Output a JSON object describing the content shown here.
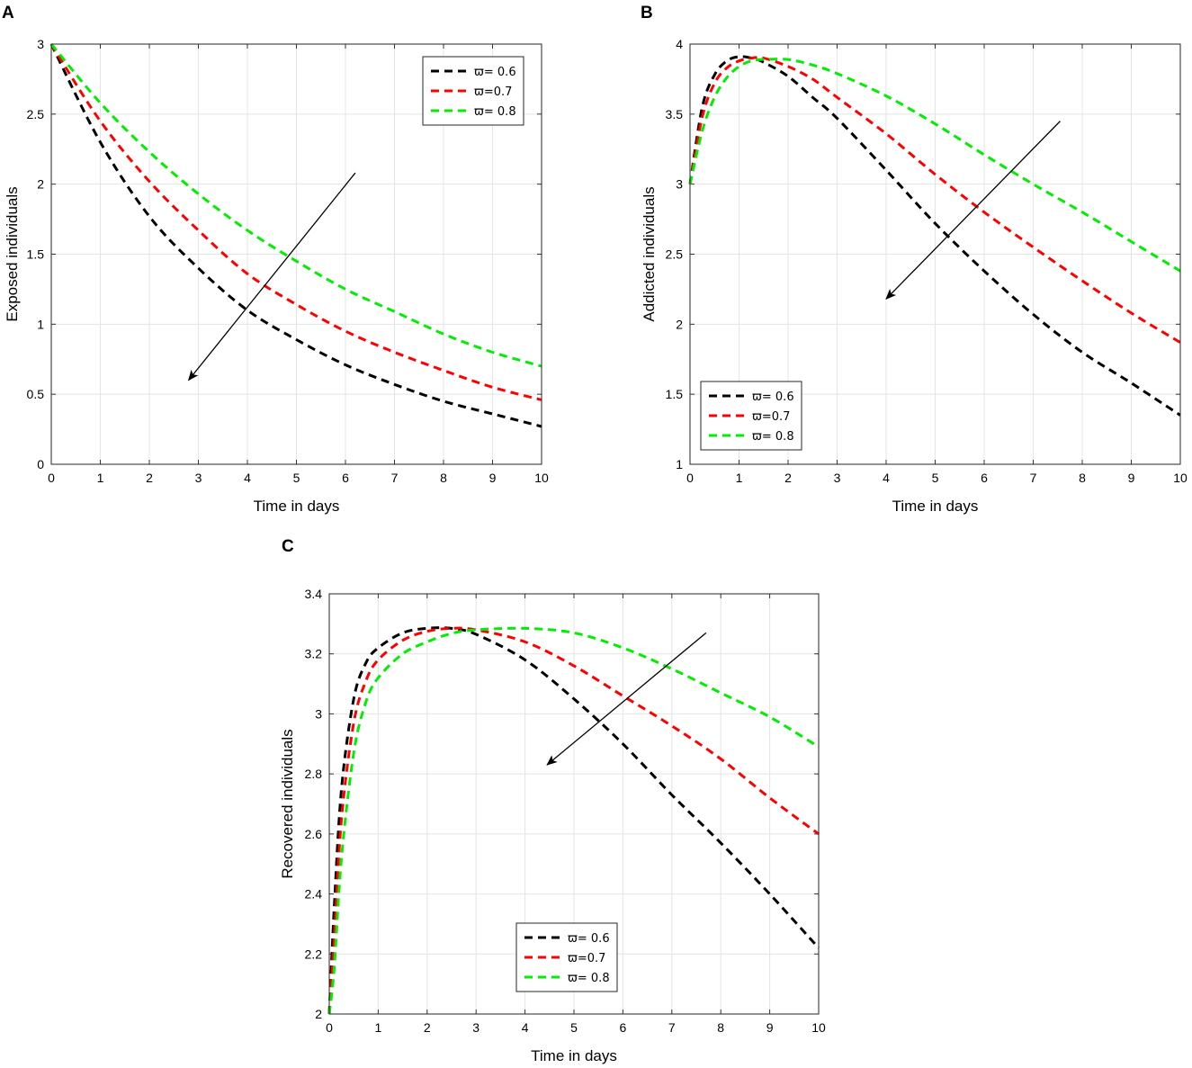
{
  "chart_data": [
    {
      "panel": "A",
      "type": "line",
      "title": "",
      "xlabel": "Time in days",
      "ylabel": "Exposed individuals",
      "xlim": [
        0,
        10
      ],
      "ylim": [
        0,
        3
      ],
      "xticks": [
        0,
        1,
        2,
        3,
        4,
        5,
        6,
        7,
        8,
        9,
        10
      ],
      "yticks": [
        0,
        0.5,
        1,
        1.5,
        2,
        2.5,
        3
      ],
      "grid": true,
      "legend_position": "top-right",
      "arrow": {
        "from": [
          6.2,
          2.08
        ],
        "to": [
          2.8,
          0.6
        ]
      },
      "x": [
        0,
        1,
        2,
        3,
        4,
        5,
        6,
        7,
        8,
        9,
        10
      ],
      "series": [
        {
          "name": "ϖ= 0.6",
          "color": "#000000",
          "values": [
            3.0,
            2.3,
            1.77,
            1.4,
            1.1,
            0.89,
            0.71,
            0.57,
            0.45,
            0.36,
            0.27
          ]
        },
        {
          "name": "ϖ=0.7",
          "color": "#ff0000",
          "values": [
            3.0,
            2.45,
            2.02,
            1.67,
            1.36,
            1.14,
            0.95,
            0.8,
            0.67,
            0.55,
            0.46
          ]
        },
        {
          "name": "ϖ= 0.8",
          "color": "#00ee00",
          "values": [
            3.0,
            2.58,
            2.23,
            1.93,
            1.67,
            1.45,
            1.25,
            1.09,
            0.93,
            0.8,
            0.7
          ]
        }
      ]
    },
    {
      "panel": "B",
      "type": "line",
      "title": "",
      "xlabel": "Time in days",
      "ylabel": "Addicted individuals",
      "xlim": [
        0,
        10
      ],
      "ylim": [
        1,
        4
      ],
      "xticks": [
        0,
        1,
        2,
        3,
        4,
        5,
        6,
        7,
        8,
        9,
        10
      ],
      "yticks": [
        1,
        1.5,
        2,
        2.5,
        3,
        3.5,
        4
      ],
      "grid": true,
      "legend_position": "bottom-left",
      "arrow": {
        "from": [
          7.55,
          3.45
        ],
        "to": [
          4.0,
          2.18
        ]
      },
      "x": [
        0,
        0.25,
        0.5,
        0.75,
        1,
        1.25,
        1.5,
        2,
        2.5,
        3,
        4,
        5,
        6,
        7,
        8,
        9,
        10
      ],
      "series": [
        {
          "name": "ϖ= 0.6",
          "color": "#000000",
          "values": [
            3.0,
            3.55,
            3.78,
            3.88,
            3.91,
            3.9,
            3.87,
            3.77,
            3.62,
            3.47,
            3.1,
            2.72,
            2.38,
            2.07,
            1.8,
            1.58,
            1.35
          ]
        },
        {
          "name": "ϖ=0.7",
          "color": "#ff0000",
          "values": [
            3.0,
            3.48,
            3.72,
            3.83,
            3.88,
            3.9,
            3.9,
            3.84,
            3.75,
            3.62,
            3.36,
            3.07,
            2.8,
            2.55,
            2.31,
            2.08,
            1.87
          ]
        },
        {
          "name": "ϖ= 0.8",
          "color": "#00ee00",
          "values": [
            3.0,
            3.38,
            3.62,
            3.76,
            3.84,
            3.88,
            3.89,
            3.89,
            3.85,
            3.79,
            3.63,
            3.43,
            3.21,
            3.0,
            2.8,
            2.59,
            2.38
          ]
        }
      ]
    },
    {
      "panel": "C",
      "type": "line",
      "title": "",
      "xlabel": "Time in days",
      "ylabel": "Recovered individuals",
      "xlim": [
        0,
        10
      ],
      "ylim": [
        2,
        3.4
      ],
      "xticks": [
        0,
        1,
        2,
        3,
        4,
        5,
        6,
        7,
        8,
        9,
        10
      ],
      "yticks": [
        2,
        2.2,
        2.4,
        2.6,
        2.8,
        3,
        3.2,
        3.4
      ],
      "grid": true,
      "legend_position": "bottom-center",
      "arrow": {
        "from": [
          7.7,
          3.27
        ],
        "to": [
          4.45,
          2.83
        ]
      },
      "x": [
        0,
        0.1,
        0.25,
        0.5,
        0.75,
        1,
        1.5,
        2,
        2.5,
        3,
        4,
        5,
        6,
        7,
        8,
        9,
        10
      ],
      "series": [
        {
          "name": "ϖ= 0.6",
          "color": "#000000",
          "values": [
            2.0,
            2.35,
            2.75,
            3.05,
            3.17,
            3.22,
            3.27,
            3.285,
            3.285,
            3.265,
            3.18,
            3.05,
            2.9,
            2.73,
            2.57,
            2.4,
            2.22
          ]
        },
        {
          "name": "ϖ=0.7",
          "color": "#ff0000",
          "values": [
            2.0,
            2.25,
            2.65,
            2.97,
            3.11,
            3.18,
            3.245,
            3.275,
            3.285,
            3.28,
            3.24,
            3.16,
            3.06,
            2.96,
            2.85,
            2.72,
            2.6
          ]
        },
        {
          "name": "ϖ= 0.8",
          "color": "#00ee00",
          "values": [
            2.0,
            2.15,
            2.52,
            2.87,
            3.04,
            3.12,
            3.2,
            3.24,
            3.268,
            3.28,
            3.285,
            3.27,
            3.22,
            3.15,
            3.07,
            2.99,
            2.89
          ]
        }
      ]
    }
  ]
}
